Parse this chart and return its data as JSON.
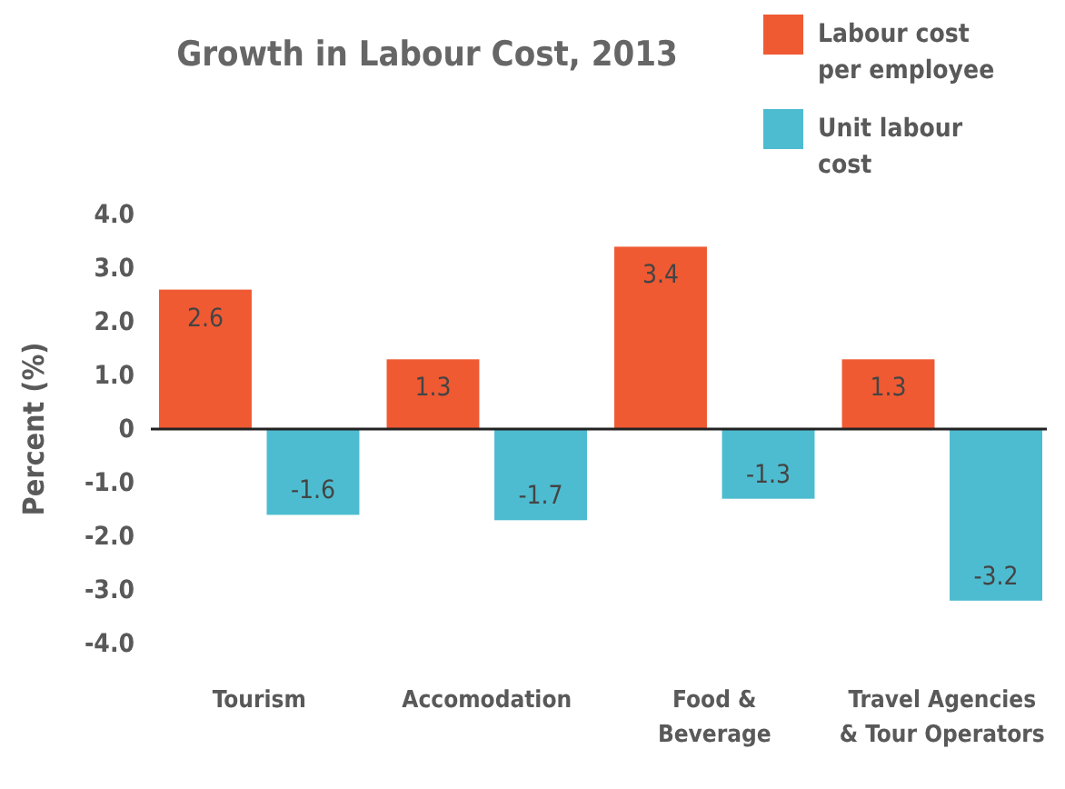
{
  "chart_data": {
    "type": "bar",
    "title": "Growth in Labour Cost, 2013",
    "ylabel": "Percent (%)",
    "categories": [
      "Tourism",
      "Accomodation",
      "Food & Beverage",
      "Travel Agencies & Tour Operators"
    ],
    "series": [
      {
        "name": "Labour cost per employee",
        "color": "#ef5a33",
        "values": [
          2.6,
          1.3,
          3.4,
          1.3
        ]
      },
      {
        "name": "Unit labour cost",
        "color": "#4dbcd0",
        "values": [
          -1.6,
          -1.7,
          -1.3,
          -3.2
        ]
      }
    ],
    "ylim": [
      -4,
      4
    ],
    "yticks": [
      {
        "value": 4,
        "label": "4.0"
      },
      {
        "value": 3,
        "label": "3.0"
      },
      {
        "value": 2,
        "label": "2.0"
      },
      {
        "value": 1,
        "label": "1.0"
      },
      {
        "value": 0,
        "label": "0"
      },
      {
        "value": -1,
        "label": "-1.0"
      },
      {
        "value": -2,
        "label": "-2.0"
      },
      {
        "value": -3,
        "label": "-3.0"
      },
      {
        "value": -4,
        "label": "-4.0"
      }
    ],
    "data_labels": true,
    "legend": "top right"
  }
}
